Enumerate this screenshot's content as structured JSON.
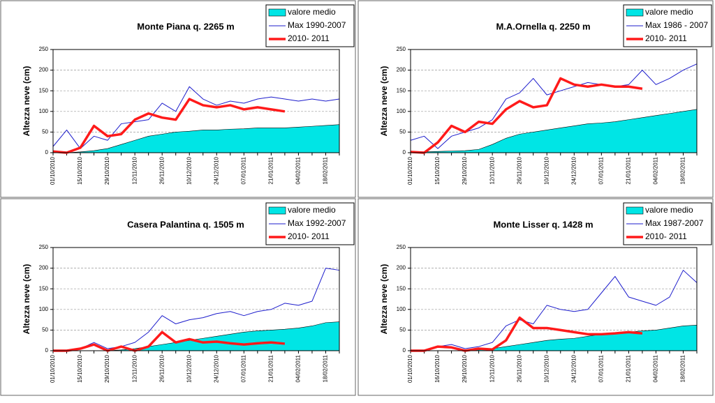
{
  "chart_data": [
    {
      "type": "line",
      "title": "Monte Piana q. 2265 m",
      "y_label": "Altezza neve (cm)",
      "categories": [
        "01/10/2010",
        null,
        "15/10/2010",
        null,
        "29/10/2010",
        null,
        "12/11/2010",
        null,
        "26/11/2010",
        null,
        "10/12/2010",
        null,
        "24/12/2010",
        null,
        "07/01/2011",
        null,
        "21/01/2011",
        null,
        "04/02/2011",
        null,
        "18/02/2011",
        null
      ],
      "series": [
        {
          "name": "valore medio",
          "style": "area",
          "color": "#00e5e5",
          "values": [
            0,
            0,
            2,
            5,
            10,
            20,
            30,
            40,
            45,
            50,
            52,
            55,
            55,
            57,
            58,
            60,
            60,
            60,
            62,
            64,
            66,
            68
          ]
        },
        {
          "name": "Max 1990-2007",
          "style": "line",
          "color": "#1c1ccc",
          "values": [
            15,
            55,
            10,
            40,
            30,
            70,
            75,
            80,
            120,
            100,
            160,
            130,
            115,
            125,
            120,
            130,
            135,
            130,
            125,
            130,
            125,
            130
          ]
        },
        {
          "name": "2010- 2011",
          "style": "line",
          "color": "#ff1a1a",
          "values": [
            3,
            0,
            12,
            65,
            40,
            45,
            80,
            95,
            85,
            80,
            130,
            115,
            110,
            115,
            105,
            110,
            105,
            100,
            null,
            null,
            null,
            null
          ]
        }
      ],
      "ylim": [
        0,
        250
      ],
      "yticks": [
        0,
        50,
        100,
        150,
        200,
        250
      ],
      "grid": true
    },
    {
      "type": "line",
      "title": "M.A.Ornella q. 2250 m",
      "y_label": "Altezza neve (cm)",
      "categories": [
        "01/10/2010",
        null,
        "15/10/2010",
        null,
        "29/10/2010",
        null,
        "12/11/2010",
        null,
        "26/11/2010",
        null,
        "10/12/2010",
        null,
        "24/12/2010",
        null,
        "07/01/2011",
        null,
        "21/01/2011",
        null,
        "04/02/2011",
        null,
        "18/02/2011",
        null
      ],
      "series": [
        {
          "name": "valore medio",
          "style": "area",
          "color": "#00e5e5",
          "values": [
            0,
            2,
            3,
            4,
            5,
            8,
            20,
            35,
            45,
            50,
            55,
            60,
            65,
            70,
            72,
            75,
            80,
            85,
            90,
            95,
            100,
            105
          ]
        },
        {
          "name": "Max 1986 - 2007",
          "style": "line",
          "color": "#1c1ccc",
          "values": [
            30,
            40,
            10,
            40,
            50,
            60,
            80,
            130,
            145,
            180,
            140,
            150,
            160,
            170,
            165,
            160,
            165,
            200,
            165,
            180,
            200,
            215
          ]
        },
        {
          "name": "2010- 2011",
          "style": "line",
          "color": "#ff1a1a",
          "values": [
            2,
            0,
            25,
            65,
            50,
            75,
            70,
            105,
            125,
            110,
            115,
            180,
            165,
            160,
            165,
            160,
            160,
            155,
            null,
            null,
            null,
            null
          ]
        }
      ],
      "ylim": [
        0,
        250
      ],
      "yticks": [
        0,
        50,
        100,
        150,
        200,
        250
      ],
      "grid": true
    },
    {
      "type": "line",
      "title": "Casera Palantina q. 1505 m",
      "y_label": "Altezza neve (cm)",
      "categories": [
        "01/10/2010",
        null,
        "15/10/2010",
        null,
        "29/10/2010",
        null,
        "12/11/2010",
        null,
        "26/11/2010",
        null,
        "10/12/2010",
        null,
        "24/12/2010",
        null,
        "07/01/2011",
        null,
        "21/01/2011",
        null,
        "04/02/2011",
        null,
        "18/02/2011",
        null
      ],
      "series": [
        {
          "name": "valore medio",
          "style": "area",
          "color": "#00e5e5",
          "values": [
            0,
            0,
            0,
            0,
            0,
            2,
            5,
            10,
            15,
            20,
            25,
            30,
            35,
            40,
            45,
            48,
            50,
            52,
            55,
            60,
            68,
            70
          ]
        },
        {
          "name": "Max 1992-2007",
          "style": "line",
          "color": "#1c1ccc",
          "values": [
            0,
            0,
            5,
            20,
            5,
            10,
            20,
            45,
            85,
            65,
            75,
            80,
            90,
            95,
            85,
            95,
            100,
            115,
            110,
            120,
            200,
            195
          ]
        },
        {
          "name": "2010- 2011",
          "style": "line",
          "color": "#ff1a1a",
          "values": [
            0,
            0,
            5,
            15,
            0,
            10,
            0,
            10,
            45,
            20,
            28,
            20,
            22,
            18,
            15,
            18,
            20,
            17,
            null,
            null,
            null,
            null
          ]
        }
      ],
      "ylim": [
        0,
        250
      ],
      "yticks": [
        0,
        50,
        100,
        150,
        200,
        250
      ],
      "grid": true
    },
    {
      "type": "line",
      "title": "Monte Lisser q. 1428 m",
      "y_label": "Altezza neve (cm)",
      "categories": [
        "01/10/2010",
        null,
        "16/10/2010",
        null,
        "29/10/2010",
        null,
        "12/11/2010",
        null,
        "26/11/2010",
        null,
        "10/12/2010",
        null,
        "24/12/2010",
        null,
        "07/01/2011",
        null,
        "21/01/2011",
        null,
        "04/02/2011",
        null,
        "18/02/2011",
        null
      ],
      "series": [
        {
          "name": "valore medio",
          "style": "area",
          "color": "#00e5e5",
          "values": [
            0,
            0,
            0,
            0,
            0,
            2,
            5,
            10,
            15,
            20,
            25,
            28,
            30,
            35,
            40,
            42,
            45,
            48,
            50,
            55,
            60,
            62
          ]
        },
        {
          "name": "Max 1987-2007",
          "style": "line",
          "color": "#1c1ccc",
          "values": [
            0,
            0,
            10,
            15,
            5,
            10,
            20,
            60,
            75,
            65,
            110,
            100,
            95,
            100,
            140,
            180,
            130,
            120,
            110,
            130,
            195,
            165
          ]
        },
        {
          "name": "2010- 2011",
          "style": "line",
          "color": "#ff1a1a",
          "values": [
            0,
            0,
            10,
            8,
            0,
            5,
            3,
            25,
            80,
            55,
            55,
            50,
            45,
            40,
            40,
            42,
            45,
            42,
            null,
            null,
            null,
            null
          ]
        }
      ],
      "ylim": [
        0,
        250
      ],
      "yticks": [
        0,
        50,
        100,
        150,
        200,
        250
      ],
      "grid": true
    }
  ]
}
